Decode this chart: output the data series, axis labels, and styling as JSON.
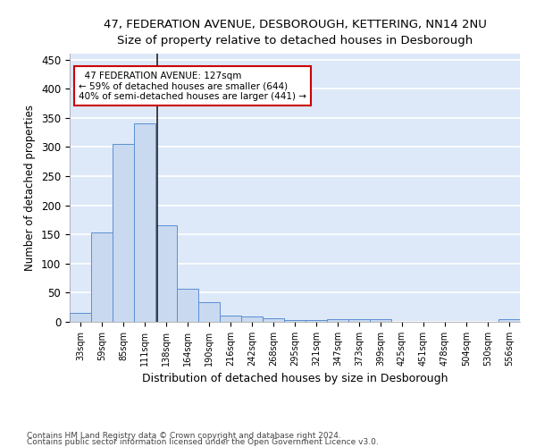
{
  "title_line1": "47, FEDERATION AVENUE, DESBOROUGH, KETTERING, NN14 2NU",
  "title_line2": "Size of property relative to detached houses in Desborough",
  "xlabel": "Distribution of detached houses by size in Desborough",
  "ylabel": "Number of detached properties",
  "footnote1": "Contains HM Land Registry data © Crown copyright and database right 2024.",
  "footnote2": "Contains public sector information licensed under the Open Government Licence v3.0.",
  "bar_labels": [
    "33sqm",
    "59sqm",
    "85sqm",
    "111sqm",
    "138sqm",
    "164sqm",
    "190sqm",
    "216sqm",
    "242sqm",
    "268sqm",
    "295sqm",
    "321sqm",
    "347sqm",
    "373sqm",
    "399sqm",
    "425sqm",
    "451sqm",
    "478sqm",
    "504sqm",
    "530sqm",
    "556sqm"
  ],
  "bar_values": [
    15,
    153,
    305,
    340,
    165,
    56,
    34,
    10,
    9,
    6,
    3,
    3,
    5,
    5,
    5,
    0,
    0,
    0,
    0,
    0,
    4
  ],
  "bar_color": "#c9d9f0",
  "bar_edge_color": "#5b8fd4",
  "background_color": "#dde8f8",
  "plot_bg_color": "#dde8f8",
  "fig_bg_color": "#ffffff",
  "grid_color": "#ffffff",
  "ylim": [
    0,
    460
  ],
  "yticks": [
    0,
    50,
    100,
    150,
    200,
    250,
    300,
    350,
    400,
    450
  ],
  "annotation_line1": "47 FEDERATION AVENUE: 127sqm",
  "annotation_line2": "← 59% of detached houses are smaller (644)",
  "annotation_line3": "40% of semi-detached houses are larger (441) →",
  "vline_color": "#222222",
  "annotation_box_edge": "#cc0000",
  "annotation_box_face": "#ffffff",
  "vline_x": 3.6
}
